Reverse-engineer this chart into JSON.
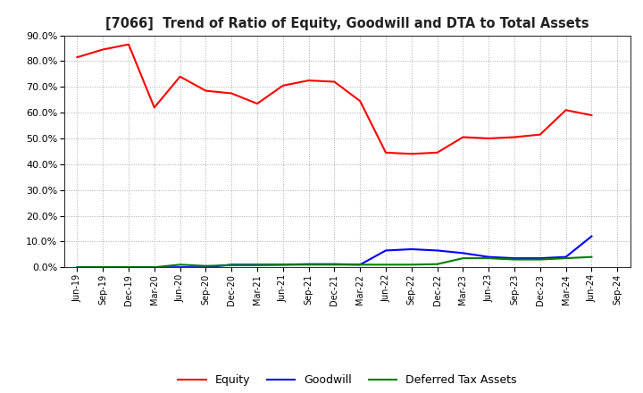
{
  "title": "[7066]  Trend of Ratio of Equity, Goodwill and DTA to Total Assets",
  "x_labels": [
    "Jun-19",
    "Sep-19",
    "Dec-19",
    "Mar-20",
    "Jun-20",
    "Sep-20",
    "Dec-20",
    "Mar-21",
    "Jun-21",
    "Sep-21",
    "Dec-21",
    "Mar-22",
    "Jun-22",
    "Sep-22",
    "Dec-22",
    "Mar-23",
    "Jun-23",
    "Sep-23",
    "Dec-23",
    "Mar-24",
    "Jun-24",
    "Sep-24"
  ],
  "equity": [
    81.5,
    84.5,
    86.5,
    62.0,
    74.0,
    68.5,
    67.5,
    63.5,
    70.5,
    72.5,
    72.0,
    64.5,
    44.5,
    44.0,
    44.5,
    50.5,
    50.0,
    50.5,
    51.5,
    61.0,
    59.0,
    null
  ],
  "goodwill": [
    0.0,
    0.0,
    0.0,
    0.0,
    0.0,
    0.0,
    1.0,
    1.0,
    1.0,
    1.2,
    1.2,
    1.0,
    6.5,
    7.0,
    6.5,
    5.5,
    4.0,
    3.5,
    3.5,
    4.0,
    12.0,
    null
  ],
  "dta": [
    0.0,
    0.0,
    0.0,
    0.0,
    1.0,
    0.5,
    0.8,
    0.8,
    1.0,
    1.0,
    1.0,
    1.0,
    1.0,
    1.0,
    1.2,
    3.5,
    3.5,
    3.0,
    3.0,
    3.5,
    4.0,
    null
  ],
  "equity_color": "#FF0000",
  "goodwill_color": "#0000FF",
  "dta_color": "#008000",
  "ylim": [
    0.0,
    90.0
  ],
  "yticks": [
    0.0,
    10.0,
    20.0,
    30.0,
    40.0,
    50.0,
    60.0,
    70.0,
    80.0,
    90.0
  ],
  "bg_color": "#FFFFFF",
  "plot_bg_color": "#FFFFFF",
  "grid_color": "#AAAAAA",
  "legend_labels": [
    "Equity",
    "Goodwill",
    "Deferred Tax Assets"
  ]
}
